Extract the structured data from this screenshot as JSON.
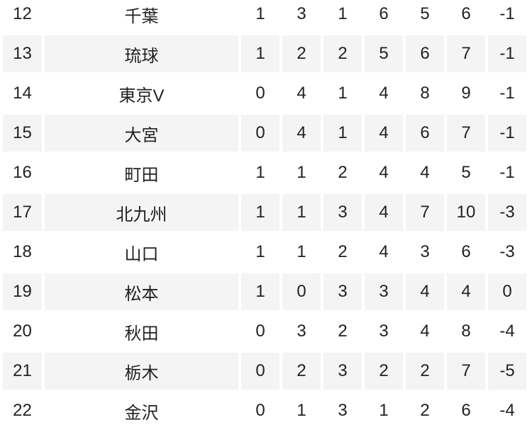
{
  "standings": [
    {
      "rank": "12",
      "team": "千葉",
      "stats": [
        "1",
        "3",
        "1",
        "6",
        "5",
        "6",
        "-1"
      ]
    },
    {
      "rank": "13",
      "team": "琉球",
      "stats": [
        "1",
        "2",
        "2",
        "5",
        "6",
        "7",
        "-1"
      ]
    },
    {
      "rank": "14",
      "team": "東京V",
      "stats": [
        "0",
        "4",
        "1",
        "4",
        "8",
        "9",
        "-1"
      ]
    },
    {
      "rank": "15",
      "team": "大宮",
      "stats": [
        "0",
        "4",
        "1",
        "4",
        "6",
        "7",
        "-1"
      ]
    },
    {
      "rank": "16",
      "team": "町田",
      "stats": [
        "1",
        "1",
        "2",
        "4",
        "4",
        "5",
        "-1"
      ]
    },
    {
      "rank": "17",
      "team": "北九州",
      "stats": [
        "1",
        "1",
        "3",
        "4",
        "7",
        "10",
        "-3"
      ]
    },
    {
      "rank": "18",
      "team": "山口",
      "stats": [
        "1",
        "1",
        "2",
        "4",
        "3",
        "6",
        "-3"
      ]
    },
    {
      "rank": "19",
      "team": "松本",
      "stats": [
        "1",
        "0",
        "3",
        "3",
        "4",
        "4",
        "0"
      ]
    },
    {
      "rank": "20",
      "team": "秋田",
      "stats": [
        "0",
        "3",
        "2",
        "3",
        "4",
        "8",
        "-4"
      ]
    },
    {
      "rank": "21",
      "team": "栃木",
      "stats": [
        "0",
        "2",
        "3",
        "2",
        "2",
        "7",
        "-5"
      ]
    },
    {
      "rank": "22",
      "team": "金沢",
      "stats": [
        "0",
        "1",
        "3",
        "1",
        "2",
        "6",
        "-4"
      ]
    }
  ],
  "colors": {
    "alt_row": "#f4f4f4",
    "text": "#222222"
  }
}
